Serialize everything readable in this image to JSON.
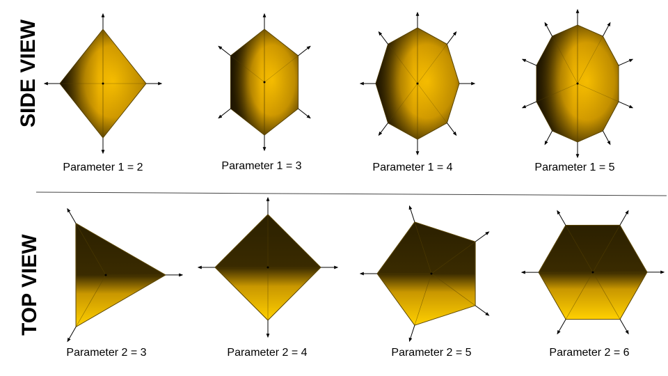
{
  "rows": {
    "side": {
      "title": "SIDE VIEW",
      "items": [
        {
          "caption": "Parameter 1 = 2",
          "param": 2
        },
        {
          "caption": "Parameter 1 = 3",
          "param": 3
        },
        {
          "caption": "Parameter 1 = 4",
          "param": 4
        },
        {
          "caption": "Parameter 1 = 5",
          "param": 5
        }
      ]
    },
    "top": {
      "title": "TOP VIEW",
      "items": [
        {
          "caption": "Parameter 2 = 3",
          "param": 3
        },
        {
          "caption": "Parameter 2 = 4",
          "param": 4
        },
        {
          "caption": "Parameter 2 = 5",
          "param": 5
        },
        {
          "caption": "Parameter 2 = 6",
          "param": 6
        }
      ]
    }
  },
  "colors": {
    "gold": "#ffc400",
    "dark": "#2b2000",
    "edge": "#5a4500",
    "arrow": "#000000",
    "divider": "#444444"
  }
}
